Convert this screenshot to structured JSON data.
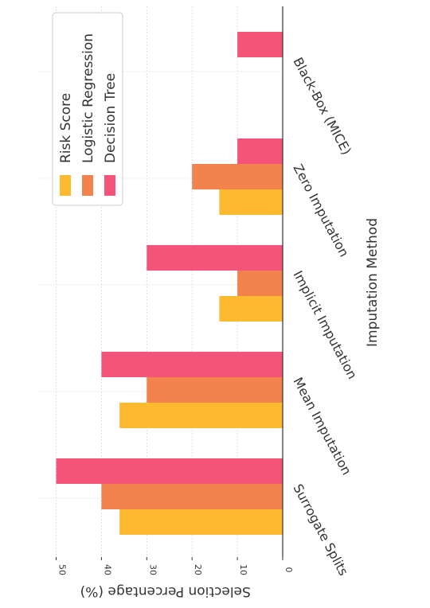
{
  "chart_data": {
    "type": "bar",
    "orientation": "horizontal",
    "rotation": "chart rotated 90 degrees clockwise",
    "categories": [
      "Surrogate Splits",
      "Mean Imputation",
      "Implicit Imputation",
      "Zero Imputation",
      "Black-Box (MICE)"
    ],
    "series": [
      {
        "name": "Risk Score",
        "color": "#FDBA30",
        "values": [
          36,
          36,
          14,
          14,
          0
        ]
      },
      {
        "name": "Logistic Regression",
        "color": "#F2834D",
        "values": [
          40,
          30,
          10,
          20,
          0
        ]
      },
      {
        "name": "Decision Tree",
        "color": "#F4547A",
        "values": [
          50,
          40,
          30,
          10,
          10
        ]
      }
    ],
    "xlabel": "Imputation Method",
    "ylabel": "Selection Percentage (%)",
    "ylim": [
      0,
      50
    ],
    "yticks": [
      "0",
      "10",
      "20",
      "30",
      "40",
      "50"
    ],
    "grid": true,
    "legend_placement": "top-left (upper end of value axis)"
  }
}
